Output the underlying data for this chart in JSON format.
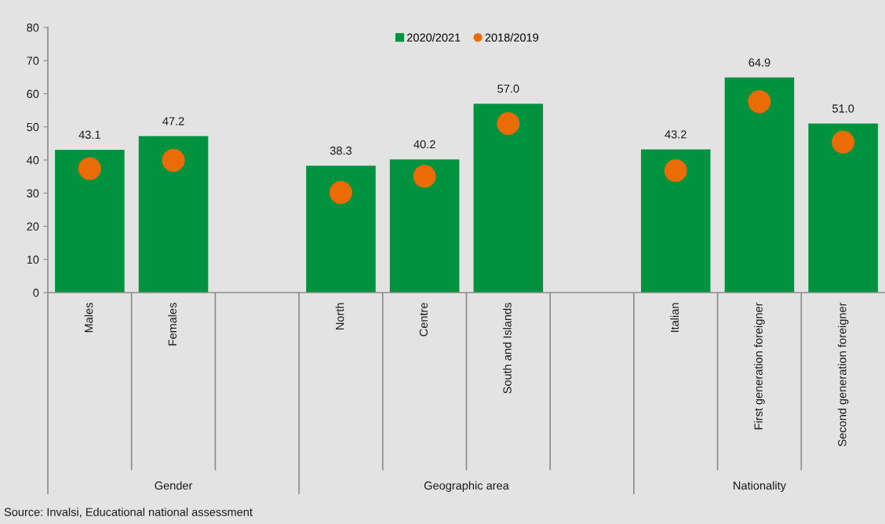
{
  "chart_data": {
    "type": "bar",
    "categories": [
      "Males",
      "Females",
      null,
      "North",
      "Centre",
      "South and Islands",
      null,
      "Italian",
      "First generation foreigner",
      "Second generation foreigner"
    ],
    "series": [
      {
        "name": "2020/2021",
        "color": "#00923f",
        "values": [
          43.1,
          47.2,
          null,
          38.3,
          40.2,
          57.0,
          null,
          43.2,
          64.9,
          51.0
        ],
        "value_labels": [
          "43.1",
          "47.2",
          null,
          "38.3",
          "40.2",
          "57.0",
          null,
          "43.2",
          "64.9",
          "51.0"
        ]
      },
      {
        "name": "2018/2019",
        "type": "scatter",
        "color": "#e96c07",
        "marker": "circle",
        "values": [
          37.4,
          39.9,
          null,
          30.2,
          35.1,
          51.0,
          null,
          36.8,
          57.6,
          45.4
        ]
      }
    ],
    "ylim": [
      0,
      80
    ],
    "yticks": [
      0,
      10,
      20,
      30,
      40,
      50,
      60,
      70,
      80
    ],
    "grid": false,
    "legend": "top",
    "annotations": [
      "Gender",
      "Geographic area",
      "Nationality",
      "Source: Invalsi, Educational national assessment"
    ]
  }
}
